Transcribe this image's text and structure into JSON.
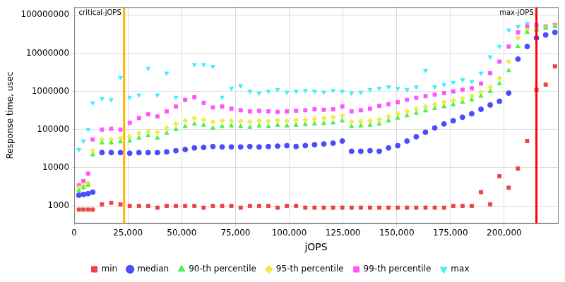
{
  "chart_data": {
    "type": "scatter",
    "x_label": "jOPS",
    "y_label": "Response time, usec",
    "log": "y",
    "grid": true,
    "legend": "bottom",
    "xlim": [
      0,
      225000
    ],
    "ylim": [
      350,
      160000000
    ],
    "xticks": [
      0,
      {
        "value": 25000,
        "label": "25,000"
      },
      {
        "value": 50000,
        "label": "50,000"
      },
      {
        "value": 75000,
        "label": "75,000"
      },
      {
        "value": 100000,
        "label": "100,000"
      },
      {
        "value": 125000,
        "label": "125,000"
      },
      {
        "value": 150000,
        "label": "150,000"
      },
      {
        "value": 175000,
        "label": "175,000"
      },
      {
        "value": 200000,
        "label": "200,000"
      }
    ],
    "yticks": [
      1000,
      10000,
      100000,
      1000000,
      10000000,
      100000000
    ],
    "annotations": [
      {
        "x": 23200,
        "label": "critical-jOPS",
        "color": "#ffb300"
      },
      {
        "x": 215000,
        "label": "max-jOPS",
        "color": "#ff0000"
      }
    ],
    "x": [
      2150,
      4300,
      6450,
      8600,
      12900,
      17200,
      21500,
      25800,
      30100,
      34400,
      38700,
      43000,
      47300,
      51600,
      55900,
      60200,
      64500,
      68800,
      73100,
      77400,
      81700,
      86000,
      90300,
      94600,
      98900,
      103200,
      107500,
      111800,
      116100,
      120400,
      124700,
      129000,
      133300,
      137600,
      141900,
      146200,
      150500,
      154800,
      159100,
      163400,
      167700,
      172000,
      176300,
      180600,
      184900,
      189200,
      193500,
      197800,
      202100,
      206400,
      210700,
      215000,
      219300,
      223600
    ],
    "series": [
      {
        "name": "min",
        "color": "#ee4444",
        "marker": "square",
        "values": [
          800,
          800,
          800,
          800,
          1100,
          1200,
          1100,
          1000,
          1000,
          1000,
          900,
          1000,
          1000,
          1000,
          1000,
          900,
          1000,
          1000,
          1000,
          900,
          1000,
          1000,
          1000,
          900,
          1000,
          1000,
          900,
          900,
          900,
          900,
          900,
          900,
          900,
          900,
          900,
          900,
          900,
          900,
          900,
          900,
          900,
          900,
          1000,
          1000,
          1000,
          2300,
          1100,
          6000,
          3000,
          9500,
          50000,
          1100000,
          1500000,
          4500000
        ]
      },
      {
        "name": "median",
        "color": "#4b4bff",
        "marker": "circle",
        "values": [
          1900,
          2000,
          2100,
          2300,
          25000,
          25000,
          25000,
          24000,
          25000,
          25000,
          25000,
          26000,
          28000,
          30000,
          33000,
          34000,
          36000,
          35000,
          35000,
          35000,
          36000,
          35000,
          36000,
          37000,
          38000,
          36000,
          38000,
          40000,
          42000,
          44000,
          50000,
          27000,
          27000,
          28000,
          27000,
          33000,
          38000,
          50000,
          65000,
          85000,
          110000,
          140000,
          170000,
          210000,
          260000,
          340000,
          440000,
          550000,
          900000,
          7000000,
          15000000,
          25000000,
          30000000,
          35000000
        ]
      },
      {
        "name": "90-th percentile",
        "color": "#55ee55",
        "marker": "triangle",
        "values": [
          2500,
          3000,
          3500,
          22000,
          45000,
          45000,
          48000,
          50000,
          60000,
          70000,
          60000,
          80000,
          100000,
          120000,
          140000,
          130000,
          110000,
          120000,
          125000,
          120000,
          115000,
          125000,
          120000,
          130000,
          125000,
          130000,
          135000,
          140000,
          145000,
          150000,
          170000,
          120000,
          125000,
          130000,
          140000,
          170000,
          200000,
          230000,
          270000,
          310000,
          360000,
          400000,
          450000,
          520000,
          600000,
          750000,
          1000000,
          1600000,
          3500000,
          15000000,
          35000000,
          40000000,
          45000000,
          50000000
        ]
      },
      {
        "name": "95-th percentile",
        "color": "#eeee44",
        "marker": "diamond",
        "values": [
          3000,
          3500,
          4000,
          28000,
          55000,
          55000,
          60000,
          65000,
          80000,
          90000,
          85000,
          110000,
          140000,
          170000,
          200000,
          180000,
          160000,
          170000,
          170000,
          165000,
          160000,
          170000,
          165000,
          175000,
          170000,
          175000,
          180000,
          190000,
          200000,
          210000,
          230000,
          160000,
          165000,
          170000,
          185000,
          220000,
          260000,
          300000,
          350000,
          400000,
          460000,
          520000,
          580000,
          660000,
          760000,
          950000,
          1300000,
          2200000,
          6000000,
          25000000,
          40000000,
          42000000,
          47000000,
          52000000
        ]
      },
      {
        "name": "99-th percentile",
        "color": "#ff55ff",
        "marker": "square",
        "values": [
          3500,
          4500,
          7000,
          55000,
          100000,
          105000,
          100000,
          150000,
          200000,
          250000,
          220000,
          300000,
          400000,
          600000,
          700000,
          500000,
          380000,
          400000,
          350000,
          320000,
          300000,
          310000,
          300000,
          290000,
          300000,
          310000,
          320000,
          340000,
          330000,
          340000,
          400000,
          300000,
          320000,
          350000,
          420000,
          460000,
          520000,
          600000,
          680000,
          750000,
          820000,
          900000,
          1000000,
          1100000,
          1200000,
          1600000,
          3000000,
          6000000,
          15000000,
          35000000,
          50000000,
          55000000,
          50000000,
          55000000
        ]
      },
      {
        "name": "max",
        "color": "#44eeff",
        "marker": "triangle-down",
        "values": [
          30000,
          50000,
          100000,
          500000,
          650000,
          600000,
          2300000,
          700000,
          800000,
          4000000,
          800000,
          3000000,
          700000,
          600000,
          5000000,
          5000000,
          4500000,
          700000,
          1200000,
          1400000,
          1000000,
          900000,
          1000000,
          1100000,
          950000,
          1000000,
          1050000,
          1000000,
          950000,
          1050000,
          1000000,
          900000,
          950000,
          1100000,
          1200000,
          1300000,
          1200000,
          1100000,
          1300000,
          3500000,
          1300000,
          1500000,
          1700000,
          2000000,
          1800000,
          3000000,
          8000000,
          15000000,
          40000000,
          50000000,
          60000000,
          45000000,
          50000000,
          55000000
        ]
      }
    ]
  }
}
